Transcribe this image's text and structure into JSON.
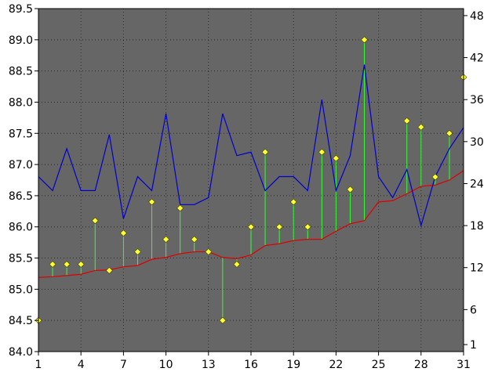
{
  "chart_data": {
    "type": "line",
    "background_color": "#ffffff",
    "plot_background_color": "#666666",
    "grid": true,
    "grid_color": "#000000",
    "x": [
      1,
      2,
      3,
      4,
      5,
      6,
      7,
      8,
      9,
      10,
      11,
      12,
      13,
      14,
      15,
      16,
      17,
      18,
      19,
      20,
      21,
      22,
      23,
      24,
      25,
      26,
      27,
      28,
      29,
      30,
      31
    ],
    "x_ticks": [
      1,
      4,
      7,
      10,
      13,
      16,
      19,
      22,
      25,
      28,
      31
    ],
    "x_tick_labels": [
      "1",
      "4",
      "7",
      "10",
      "13",
      "16",
      "19",
      "22",
      "25",
      "28",
      "31"
    ],
    "xlim": [
      1,
      31
    ],
    "y_left": {
      "ylim": [
        84.0,
        89.5
      ],
      "ticks": [
        84.0,
        84.5,
        85.0,
        85.5,
        86.0,
        86.5,
        87.0,
        87.5,
        88.0,
        88.5,
        89.0,
        89.5
      ],
      "tick_labels": [
        "84.0",
        "84.5",
        "85.0",
        "85.5",
        "86.0",
        "86.5",
        "87.0",
        "87.5",
        "88.0",
        "88.5",
        "89.0",
        "89.5"
      ]
    },
    "y_right": {
      "ylim": [
        0,
        49
      ],
      "ticks": [
        1,
        6,
        12,
        18,
        24,
        30,
        36,
        42,
        48
      ],
      "tick_labels": [
        "1",
        "6",
        "12",
        "18",
        "24",
        "30",
        "36",
        "42",
        "48"
      ]
    },
    "series": [
      {
        "axis": "left",
        "style": "markers",
        "color": "#ffff33",
        "marker": "diamond",
        "values": [
          84.5,
          85.4,
          85.4,
          85.4,
          86.1,
          85.3,
          85.9,
          85.6,
          86.4,
          85.8,
          86.3,
          85.8,
          85.6,
          84.5,
          85.4,
          86.0,
          87.2,
          86.0,
          86.4,
          86.0,
          87.2,
          87.1,
          86.6,
          89.0,
          null,
          null,
          87.7,
          87.6,
          86.8,
          87.5,
          88.4
        ]
      },
      {
        "axis": "left",
        "style": "line",
        "color": "#dd0000",
        "values": [
          85.19,
          85.2,
          85.22,
          85.24,
          85.3,
          85.31,
          85.36,
          85.38,
          85.48,
          85.51,
          85.57,
          85.6,
          85.6,
          85.51,
          85.49,
          85.55,
          85.7,
          85.73,
          85.78,
          85.8,
          85.8,
          85.93,
          86.05,
          86.1,
          86.4,
          86.42,
          86.53,
          86.65,
          86.67,
          86.75,
          86.9
        ]
      },
      {
        "axis": "right",
        "style": "line",
        "color": "#0000cc",
        "values": [
          25,
          23,
          29,
          23,
          23,
          31,
          19,
          25,
          23,
          34,
          21,
          21,
          22,
          34,
          28,
          28.5,
          23,
          25,
          25,
          23,
          36,
          23,
          28,
          41,
          25,
          22,
          26,
          18,
          25,
          29,
          32
        ]
      }
    ],
    "stem_color": "#33ff33"
  }
}
